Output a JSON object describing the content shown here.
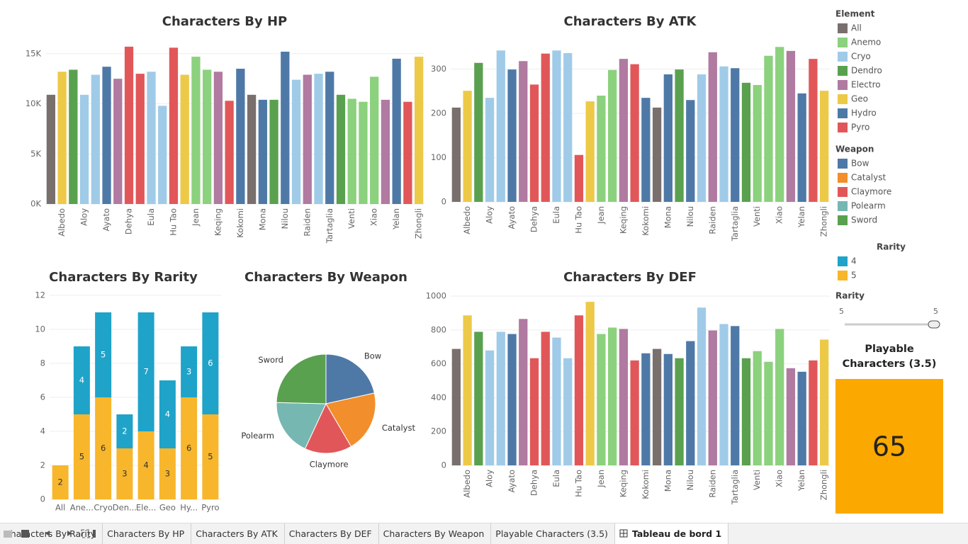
{
  "chart_data": [
    {
      "type": "bar",
      "title": "Characters By HP",
      "categories": [
        null,
        "Albedo",
        null,
        "Aloy",
        null,
        "Ayato",
        null,
        "Dehya",
        null,
        "Eula",
        null,
        "Hu Tao",
        null,
        "Jean",
        null,
        "Keqing",
        null,
        "Kokomi",
        null,
        "Mona",
        null,
        "Nilou",
        null,
        "Raiden",
        null,
        "Tartaglia",
        null,
        "Venti",
        null,
        "Xiao",
        null,
        "Yelan",
        null,
        "Zhongli"
      ],
      "values": [
        10900,
        13200,
        13400,
        10900,
        12900,
        13700,
        12500,
        15700,
        13000,
        13200,
        9800,
        15600,
        12900,
        14700,
        13400,
        13200,
        10300,
        13500,
        10900,
        10400,
        10400,
        15200,
        12400,
        12900,
        13000,
        13200,
        10900,
        10500,
        10200,
        12700,
        10400,
        14500,
        10200,
        14700
      ],
      "colors": [
        "#79706e",
        "#edc948",
        "#59a14f",
        "#a0cbe8",
        "#a0cbe8",
        "#4e79a7",
        "#b07aa1",
        "#e15759",
        "#e15759",
        "#a0cbe8",
        "#a0cbe8",
        "#e15759",
        "#edc948",
        "#8cd17d",
        "#8cd17d",
        "#b07aa1",
        "#e15759",
        "#4e79a7",
        "#79706e",
        "#4e79a7",
        "#59a14f",
        "#4e79a7",
        "#a0cbe8",
        "#b07aa1",
        "#a0cbe8",
        "#4e79a7",
        "#59a14f",
        "#8cd17d",
        "#8cd17d",
        "#8cd17d",
        "#b07aa1",
        "#4e79a7",
        "#e15759",
        "#edc948"
      ],
      "ylim": [
        0,
        16400
      ],
      "yticks": [
        {
          "value": 0,
          "label": "0K"
        },
        {
          "value": 5000,
          "label": "5K"
        },
        {
          "value": 10000,
          "label": "10K"
        },
        {
          "value": 15000,
          "label": "15K"
        }
      ],
      "grid": true
    },
    {
      "type": "bar",
      "title": "Characters By ATK",
      "categories": [
        null,
        "Albedo",
        null,
        "Aloy",
        null,
        "Ayato",
        null,
        "Dehya",
        null,
        "Eula",
        null,
        "Hu Tao",
        null,
        "Jean",
        null,
        "Keqing",
        null,
        "Kokomi",
        null,
        "Mona",
        null,
        "Nilou",
        null,
        "Raiden",
        null,
        "Tartaglia",
        null,
        "Venti",
        null,
        "Xiao",
        null,
        "Yelan",
        null,
        "Zhongli"
      ],
      "values": [
        213,
        251,
        314,
        235,
        342,
        299,
        318,
        265,
        335,
        342,
        336,
        106,
        227,
        240,
        298,
        323,
        311,
        235,
        213,
        288,
        299,
        230,
        288,
        338,
        306,
        302,
        269,
        264,
        330,
        350,
        341,
        245,
        323,
        251
      ],
      "colors": [
        "#79706e",
        "#edc948",
        "#59a14f",
        "#a0cbe8",
        "#a0cbe8",
        "#4e79a7",
        "#b07aa1",
        "#e15759",
        "#e15759",
        "#a0cbe8",
        "#a0cbe8",
        "#e15759",
        "#edc948",
        "#8cd17d",
        "#8cd17d",
        "#b07aa1",
        "#e15759",
        "#4e79a7",
        "#79706e",
        "#4e79a7",
        "#59a14f",
        "#4e79a7",
        "#a0cbe8",
        "#b07aa1",
        "#a0cbe8",
        "#4e79a7",
        "#59a14f",
        "#8cd17d",
        "#8cd17d",
        "#8cd17d",
        "#b07aa1",
        "#4e79a7",
        "#e15759",
        "#edc948"
      ],
      "ylim": [
        0,
        360
      ],
      "yticks": [
        0,
        100,
        200,
        300
      ],
      "grid": true
    },
    {
      "type": "stacked_bar",
      "title": "Characters By Rarity",
      "categories": [
        "All",
        "Ane...",
        "Cryo",
        "Den...",
        "Ele...",
        "Geo",
        "Hy...",
        "Pyro"
      ],
      "series": [
        {
          "name": "5",
          "color": "#f7b62b",
          "values": [
            2,
            5,
            6,
            3,
            4,
            3,
            6,
            5
          ]
        },
        {
          "name": "4",
          "color": "#1fa3c9",
          "values": [
            null,
            4,
            5,
            2,
            7,
            4,
            3,
            6
          ]
        }
      ],
      "ylim": [
        0,
        12
      ],
      "yticks": [
        0,
        2,
        4,
        6,
        8,
        10,
        12
      ],
      "grid": true
    },
    {
      "type": "pie",
      "title": "Characters By Weapon",
      "categories": [
        "Bow",
        "Catalyst",
        "Claymore",
        "Polearm",
        "Sword"
      ],
      "values": [
        14,
        13,
        10,
        12,
        16
      ],
      "colors": [
        "#4e79a7",
        "#f28e2b",
        "#e15759",
        "#76b7b2",
        "#59a14f"
      ]
    },
    {
      "type": "bar",
      "title": "Characters By DEF",
      "categories": [
        null,
        "Albedo",
        null,
        "Aloy",
        null,
        "Ayato",
        null,
        "Dehya",
        null,
        "Eula",
        null,
        "Hu Tao",
        null,
        "Jean",
        null,
        "Keqing",
        null,
        "Kokomi",
        null,
        "Mona",
        null,
        "Nilou",
        null,
        "Raiden",
        null,
        "Tartaglia",
        null,
        "Venti",
        null,
        "Xiao",
        null,
        "Yelan",
        null,
        "Zhongli"
      ],
      "values": [
        688,
        886,
        789,
        679,
        789,
        776,
        865,
        633,
        789,
        755,
        633,
        886,
        966,
        776,
        814,
        806,
        620,
        662,
        688,
        658,
        633,
        734,
        932,
        797,
        835,
        823,
        633,
        675,
        612,
        806,
        574,
        553,
        620,
        743
      ],
      "colors": [
        "#79706e",
        "#edc948",
        "#59a14f",
        "#a0cbe8",
        "#a0cbe8",
        "#4e79a7",
        "#b07aa1",
        "#e15759",
        "#e15759",
        "#a0cbe8",
        "#a0cbe8",
        "#e15759",
        "#edc948",
        "#8cd17d",
        "#8cd17d",
        "#b07aa1",
        "#e15759",
        "#4e79a7",
        "#79706e",
        "#4e79a7",
        "#59a14f",
        "#4e79a7",
        "#a0cbe8",
        "#b07aa1",
        "#a0cbe8",
        "#4e79a7",
        "#59a14f",
        "#8cd17d",
        "#8cd17d",
        "#8cd17d",
        "#b07aa1",
        "#4e79a7",
        "#e15759",
        "#edc948"
      ],
      "ylim": [
        0,
        1000
      ],
      "yticks": [
        0,
        200,
        400,
        600,
        800,
        1000
      ],
      "grid": true
    }
  ],
  "legends": [
    {
      "title": "Element",
      "items": [
        {
          "label": "All",
          "color": "#79706e"
        },
        {
          "label": "Anemo",
          "color": "#8cd17d"
        },
        {
          "label": "Cryo",
          "color": "#a0cbe8"
        },
        {
          "label": "Dendro",
          "color": "#59a14f"
        },
        {
          "label": "Electro",
          "color": "#b07aa1"
        },
        {
          "label": "Geo",
          "color": "#edc948"
        },
        {
          "label": "Hydro",
          "color": "#4e79a7"
        },
        {
          "label": "Pyro",
          "color": "#e15759"
        }
      ]
    },
    {
      "title": "Weapon",
      "items": [
        {
          "label": "Bow",
          "color": "#4e79a7"
        },
        {
          "label": "Catalyst",
          "color": "#f28e2b"
        },
        {
          "label": "Claymore",
          "color": "#e15759"
        },
        {
          "label": "Polearm",
          "color": "#76b7b2"
        },
        {
          "label": "Sword",
          "color": "#59a14f"
        }
      ]
    },
    {
      "title": "Rarity",
      "items": [
        {
          "label": "4",
          "color": "#1fa3c9"
        },
        {
          "label": "5",
          "color": "#f7b62b"
        }
      ]
    }
  ],
  "filter": {
    "title": "Rarity",
    "min": 5,
    "max": 5
  },
  "kpi": {
    "title": "Playable Characters (3.5)",
    "value": 65,
    "color": "#fba800"
  },
  "tabs": {
    "items": [
      "Characters By Rarity",
      "Characters By HP",
      "Characters By ATK",
      "Characters By DEF",
      "Characters By Weapon",
      "Playable Characters (3.5)",
      "Tableau de bord 1"
    ],
    "active": 6
  }
}
